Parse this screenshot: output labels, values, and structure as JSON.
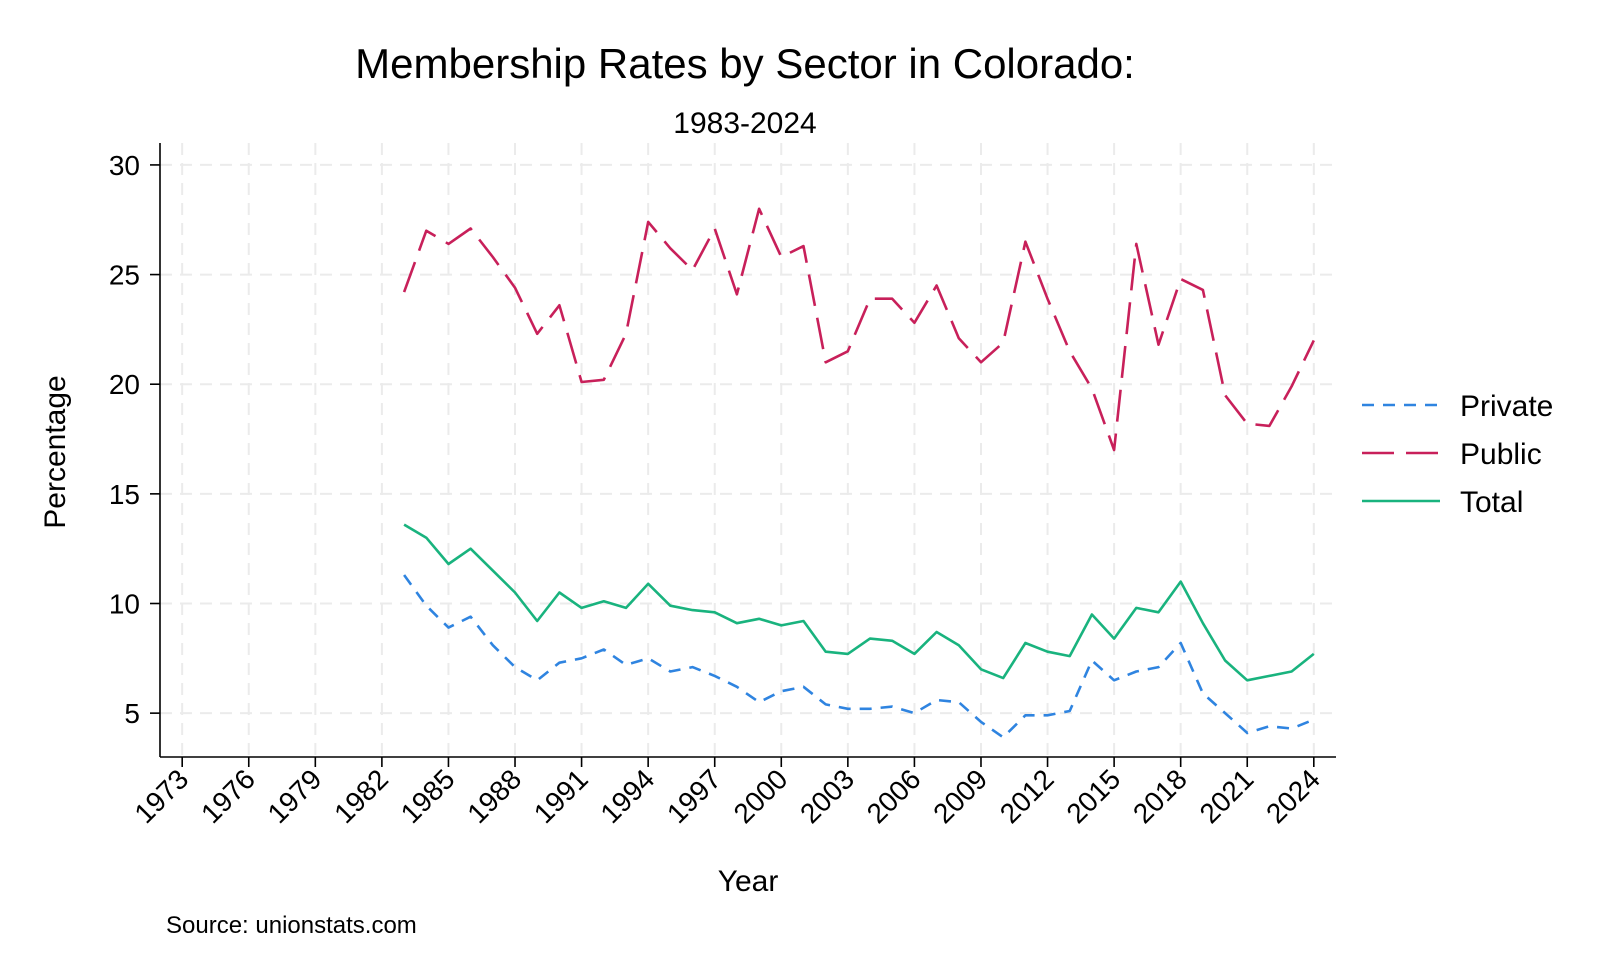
{
  "chart_data": {
    "type": "line",
    "title": "Membership Rates by Sector in Colorado:",
    "subtitle": "1983-2024",
    "xlabel": "Year",
    "ylabel": "Percentage",
    "note": "Source: unionstats.com",
    "xlim": [
      1972,
      2025
    ],
    "ylim": [
      3,
      31
    ],
    "x_ticks": [
      1973,
      1976,
      1979,
      1982,
      1985,
      1988,
      1991,
      1994,
      1997,
      2000,
      2003,
      2006,
      2009,
      2012,
      2015,
      2018,
      2021,
      2024
    ],
    "y_ticks": [
      5,
      10,
      15,
      20,
      25,
      30
    ],
    "grid": true,
    "legend_position": "right",
    "x": [
      1983,
      1984,
      1985,
      1986,
      1987,
      1988,
      1989,
      1990,
      1991,
      1992,
      1993,
      1994,
      1995,
      1996,
      1997,
      1998,
      1999,
      2000,
      2001,
      2002,
      2003,
      2004,
      2005,
      2006,
      2007,
      2008,
      2009,
      2010,
      2011,
      2012,
      2013,
      2014,
      2015,
      2016,
      2017,
      2018,
      2019,
      2020,
      2021,
      2022,
      2023,
      2024
    ],
    "series": [
      {
        "name": "Private",
        "color": "#2f84e0",
        "dash": "dashed",
        "values": [
          11.3,
          9.9,
          8.9,
          9.4,
          8.1,
          7.1,
          6.5,
          7.3,
          7.5,
          7.9,
          7.2,
          7.5,
          6.9,
          7.1,
          6.7,
          6.2,
          5.5,
          6.0,
          6.2,
          5.4,
          5.2,
          5.2,
          5.3,
          5.0,
          5.6,
          5.5,
          4.6,
          3.9,
          4.9,
          4.9,
          5.1,
          7.4,
          6.5,
          6.9,
          7.1,
          8.2,
          5.9,
          5.0,
          4.1,
          4.4,
          4.3,
          4.7
        ]
      },
      {
        "name": "Public",
        "color": "#c8205a",
        "dash": "longdash",
        "values": [
          24.2,
          27.0,
          26.4,
          27.1,
          25.8,
          24.4,
          22.3,
          23.6,
          20.1,
          20.2,
          22.3,
          27.4,
          26.2,
          25.2,
          27.1,
          24.1,
          28.0,
          25.8,
          26.3,
          21.0,
          21.5,
          23.9,
          23.9,
          22.8,
          24.5,
          22.1,
          21.0,
          21.9,
          26.5,
          23.9,
          21.5,
          19.8,
          17.0,
          26.4,
          21.8,
          24.8,
          24.3,
          19.5,
          18.2,
          18.1,
          19.9,
          22.0
        ]
      },
      {
        "name": "Total",
        "color": "#19b37e",
        "dash": "solid",
        "values": [
          13.6,
          13.0,
          11.8,
          12.5,
          11.5,
          10.5,
          9.2,
          10.5,
          9.8,
          10.1,
          9.8,
          10.9,
          9.9,
          9.7,
          9.6,
          9.1,
          9.3,
          9.0,
          9.2,
          7.8,
          7.7,
          8.4,
          8.3,
          7.7,
          8.7,
          8.1,
          7.0,
          6.6,
          8.2,
          7.8,
          7.6,
          9.5,
          8.4,
          9.8,
          9.6,
          11.0,
          9.1,
          7.4,
          6.5,
          6.7,
          6.9,
          7.7
        ]
      }
    ]
  }
}
